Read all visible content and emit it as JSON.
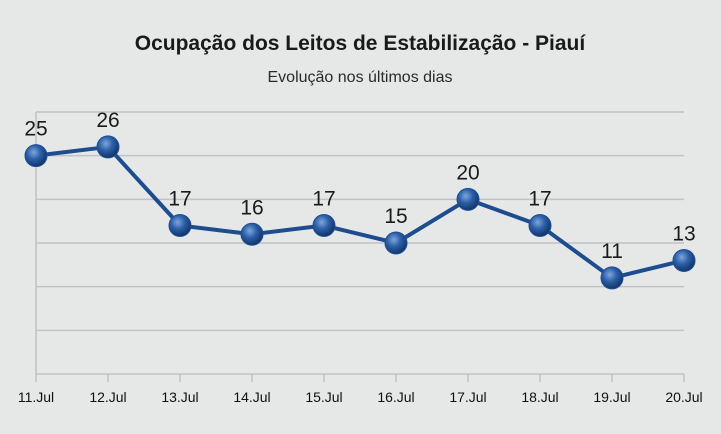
{
  "chart_data": {
    "type": "line",
    "title": "Ocupação dos Leitos de Estabilização - Piauí",
    "subtitle": "Evolução nos últimos dias",
    "xlabel": "",
    "ylabel": "",
    "categories": [
      "11.Jul",
      "12.Jul",
      "13.Jul",
      "14.Jul",
      "15.Jul",
      "16.Jul",
      "17.Jul",
      "18.Jul",
      "19.Jul",
      "20.Jul"
    ],
    "series": [
      {
        "values": [
          25,
          26,
          17,
          16,
          17,
          15,
          20,
          17,
          11,
          13
        ]
      }
    ],
    "ylim": [
      0,
      30
    ],
    "y_ticks_labeled": false,
    "grid": "horizontal",
    "legend": "none",
    "data_labels": true,
    "colors": {
      "background": "#e6e8e8",
      "grid": "#bfc3c5",
      "line": "#1e4d8f",
      "marker": "#1f4f93"
    }
  }
}
